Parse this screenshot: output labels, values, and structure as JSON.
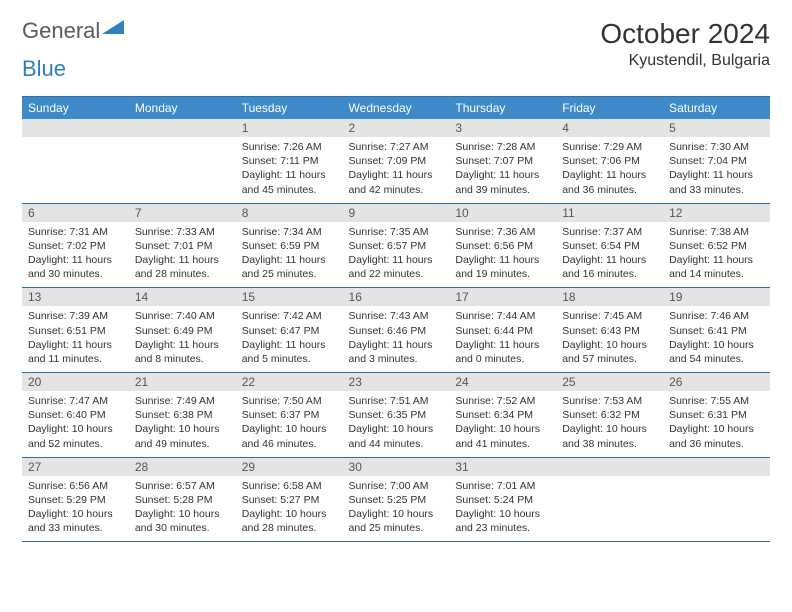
{
  "logo": {
    "text1": "General",
    "text2": "Blue"
  },
  "title": "October 2024",
  "location": "Kyustendil, Bulgaria",
  "colors": {
    "header_bg": "#3e8ac9",
    "header_fg": "#ffffff",
    "daynum_bg": "#e4e4e4",
    "border": "#2f6fa8",
    "logo_gray": "#5a5a5a",
    "logo_blue": "#2f7fc1"
  },
  "dayNames": [
    "Sunday",
    "Monday",
    "Tuesday",
    "Wednesday",
    "Thursday",
    "Friday",
    "Saturday"
  ],
  "weeks": [
    [
      null,
      null,
      {
        "n": "1",
        "sr": "7:26 AM",
        "ss": "7:11 PM",
        "dl": "11 hours and 45 minutes."
      },
      {
        "n": "2",
        "sr": "7:27 AM",
        "ss": "7:09 PM",
        "dl": "11 hours and 42 minutes."
      },
      {
        "n": "3",
        "sr": "7:28 AM",
        "ss": "7:07 PM",
        "dl": "11 hours and 39 minutes."
      },
      {
        "n": "4",
        "sr": "7:29 AM",
        "ss": "7:06 PM",
        "dl": "11 hours and 36 minutes."
      },
      {
        "n": "5",
        "sr": "7:30 AM",
        "ss": "7:04 PM",
        "dl": "11 hours and 33 minutes."
      }
    ],
    [
      {
        "n": "6",
        "sr": "7:31 AM",
        "ss": "7:02 PM",
        "dl": "11 hours and 30 minutes."
      },
      {
        "n": "7",
        "sr": "7:33 AM",
        "ss": "7:01 PM",
        "dl": "11 hours and 28 minutes."
      },
      {
        "n": "8",
        "sr": "7:34 AM",
        "ss": "6:59 PM",
        "dl": "11 hours and 25 minutes."
      },
      {
        "n": "9",
        "sr": "7:35 AM",
        "ss": "6:57 PM",
        "dl": "11 hours and 22 minutes."
      },
      {
        "n": "10",
        "sr": "7:36 AM",
        "ss": "6:56 PM",
        "dl": "11 hours and 19 minutes."
      },
      {
        "n": "11",
        "sr": "7:37 AM",
        "ss": "6:54 PM",
        "dl": "11 hours and 16 minutes."
      },
      {
        "n": "12",
        "sr": "7:38 AM",
        "ss": "6:52 PM",
        "dl": "11 hours and 14 minutes."
      }
    ],
    [
      {
        "n": "13",
        "sr": "7:39 AM",
        "ss": "6:51 PM",
        "dl": "11 hours and 11 minutes."
      },
      {
        "n": "14",
        "sr": "7:40 AM",
        "ss": "6:49 PM",
        "dl": "11 hours and 8 minutes."
      },
      {
        "n": "15",
        "sr": "7:42 AM",
        "ss": "6:47 PM",
        "dl": "11 hours and 5 minutes."
      },
      {
        "n": "16",
        "sr": "7:43 AM",
        "ss": "6:46 PM",
        "dl": "11 hours and 3 minutes."
      },
      {
        "n": "17",
        "sr": "7:44 AM",
        "ss": "6:44 PM",
        "dl": "11 hours and 0 minutes."
      },
      {
        "n": "18",
        "sr": "7:45 AM",
        "ss": "6:43 PM",
        "dl": "10 hours and 57 minutes."
      },
      {
        "n": "19",
        "sr": "7:46 AM",
        "ss": "6:41 PM",
        "dl": "10 hours and 54 minutes."
      }
    ],
    [
      {
        "n": "20",
        "sr": "7:47 AM",
        "ss": "6:40 PM",
        "dl": "10 hours and 52 minutes."
      },
      {
        "n": "21",
        "sr": "7:49 AM",
        "ss": "6:38 PM",
        "dl": "10 hours and 49 minutes."
      },
      {
        "n": "22",
        "sr": "7:50 AM",
        "ss": "6:37 PM",
        "dl": "10 hours and 46 minutes."
      },
      {
        "n": "23",
        "sr": "7:51 AM",
        "ss": "6:35 PM",
        "dl": "10 hours and 44 minutes."
      },
      {
        "n": "24",
        "sr": "7:52 AM",
        "ss": "6:34 PM",
        "dl": "10 hours and 41 minutes."
      },
      {
        "n": "25",
        "sr": "7:53 AM",
        "ss": "6:32 PM",
        "dl": "10 hours and 38 minutes."
      },
      {
        "n": "26",
        "sr": "7:55 AM",
        "ss": "6:31 PM",
        "dl": "10 hours and 36 minutes."
      }
    ],
    [
      {
        "n": "27",
        "sr": "6:56 AM",
        "ss": "5:29 PM",
        "dl": "10 hours and 33 minutes."
      },
      {
        "n": "28",
        "sr": "6:57 AM",
        "ss": "5:28 PM",
        "dl": "10 hours and 30 minutes."
      },
      {
        "n": "29",
        "sr": "6:58 AM",
        "ss": "5:27 PM",
        "dl": "10 hours and 28 minutes."
      },
      {
        "n": "30",
        "sr": "7:00 AM",
        "ss": "5:25 PM",
        "dl": "10 hours and 25 minutes."
      },
      {
        "n": "31",
        "sr": "7:01 AM",
        "ss": "5:24 PM",
        "dl": "10 hours and 23 minutes."
      },
      null,
      null
    ]
  ],
  "labels": {
    "sunrise": "Sunrise:",
    "sunset": "Sunset:",
    "daylight": "Daylight:"
  }
}
